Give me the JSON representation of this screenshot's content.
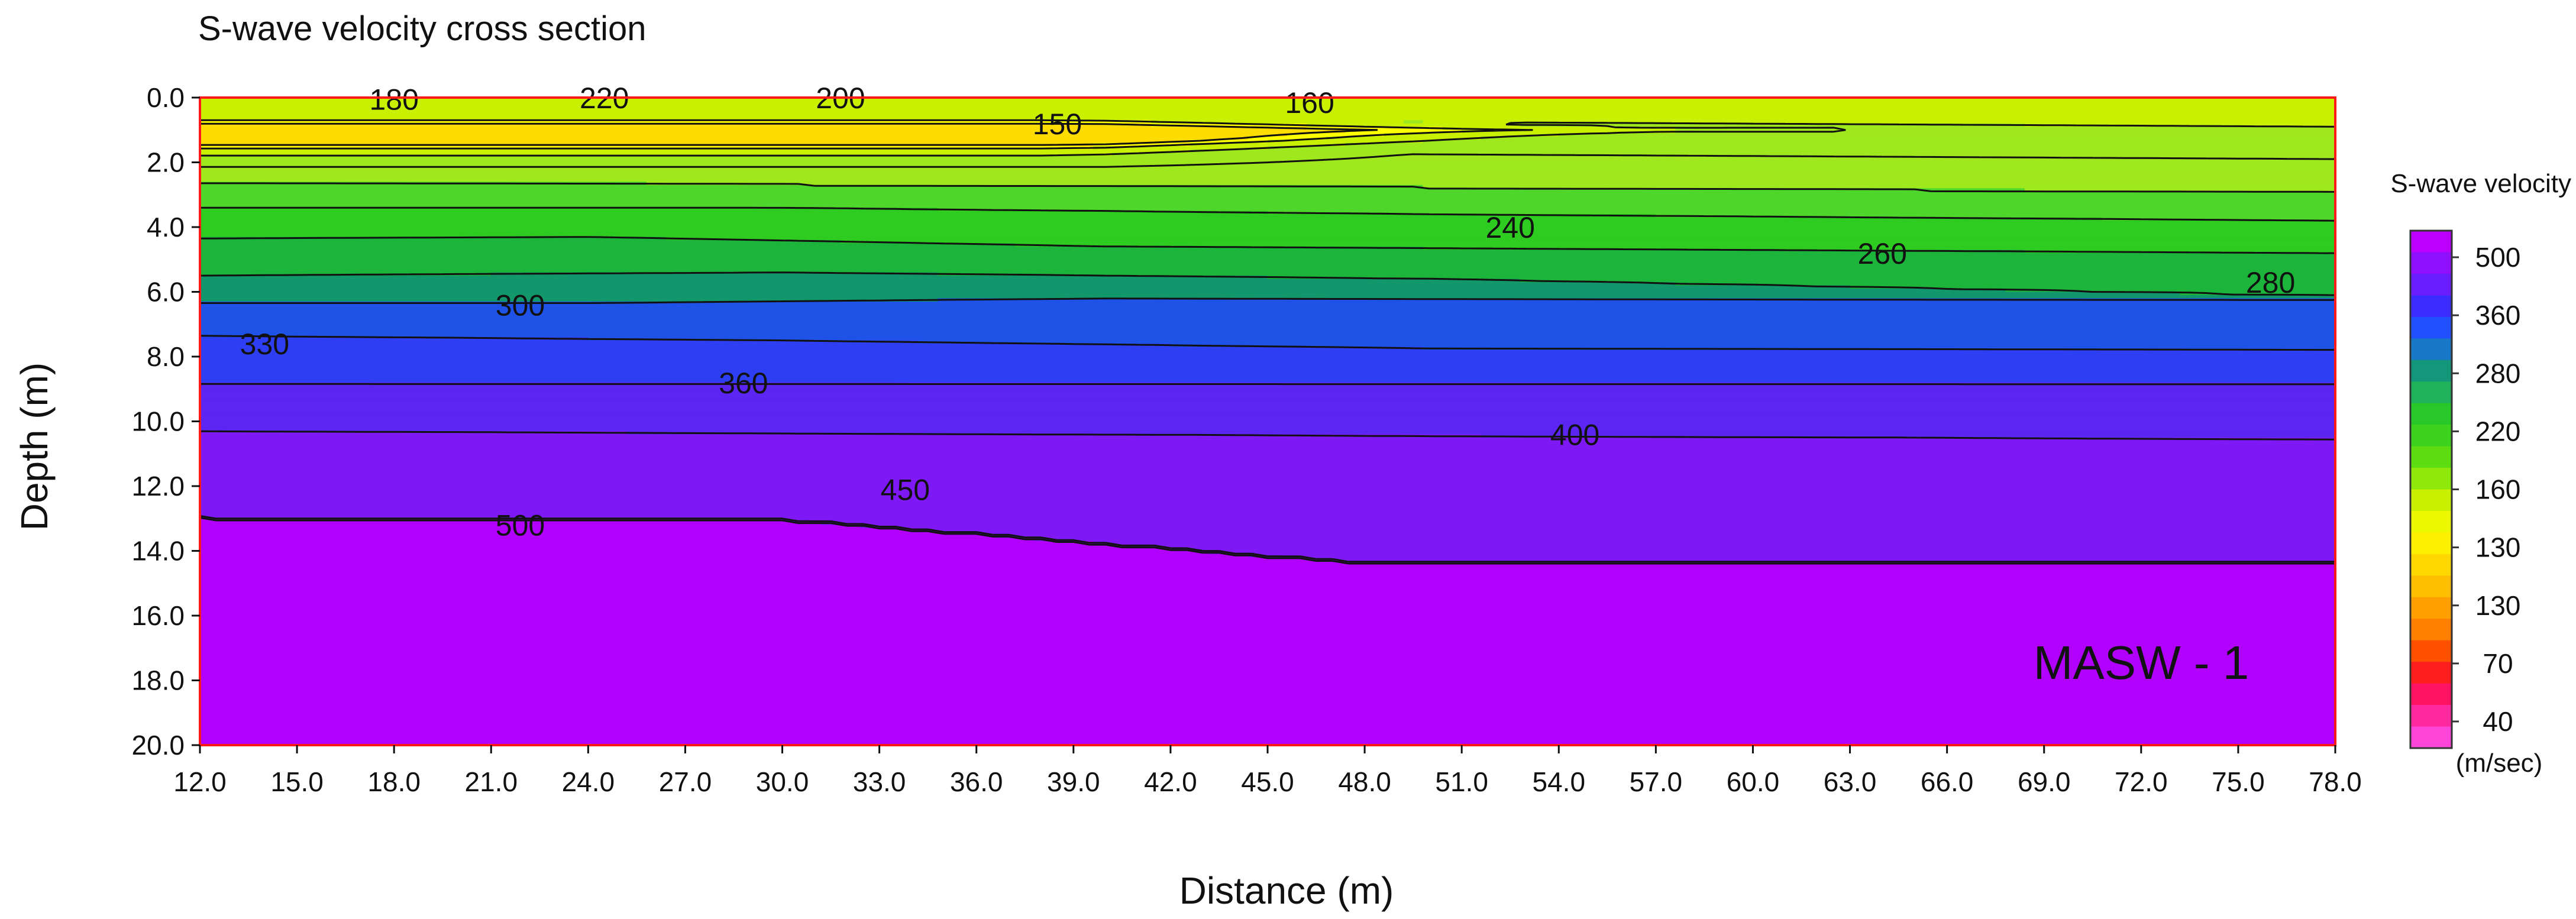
{
  "chart_data": {
    "type": "heatmap",
    "title": "S-wave velocity cross section",
    "xlabel": "Distance (m)",
    "ylabel": "Depth (m)",
    "x_ticks": [
      "12.0",
      "15.0",
      "18.0",
      "21.0",
      "24.0",
      "27.0",
      "30.0",
      "33.0",
      "36.0",
      "39.0",
      "42.0",
      "45.0",
      "48.0",
      "51.0",
      "54.0",
      "57.0",
      "60.0",
      "63.0",
      "66.0",
      "69.0",
      "72.0",
      "75.0",
      "78.0"
    ],
    "y_ticks": [
      "0.0",
      "2.0",
      "4.0",
      "6.0",
      "8.0",
      "10.0",
      "12.0",
      "14.0",
      "16.0",
      "18.0",
      "20.0"
    ],
    "xlim": [
      12,
      78
    ],
    "ylim": [
      0,
      20
    ],
    "annotation": "MASW - 1",
    "colorbar": {
      "title": "S-wave velocity",
      "unit": "(m/sec)",
      "labels": [
        "500",
        "360",
        "280",
        "220",
        "160",
        "130",
        "130",
        "70",
        "40"
      ],
      "colors": [
        "#bb00ff",
        "#8f10ff",
        "#6a1dff",
        "#3d2cff",
        "#2050ff",
        "#1a78c8",
        "#14967a",
        "#1fb25a",
        "#28c82a",
        "#3cd21e",
        "#5ddc12",
        "#8ee80a",
        "#c8f000",
        "#ecf800",
        "#fff000",
        "#ffd800",
        "#ffbe00",
        "#ffa000",
        "#ff7f00",
        "#ff5000",
        "#ff1e1e",
        "#ff1464",
        "#ff2aa0",
        "#ff44d8"
      ]
    },
    "bands": [
      {
        "v_min": 0,
        "v_max": 150,
        "color": "#ffdc00"
      },
      {
        "v_min": 150,
        "v_max": 160,
        "color": "#ffff00"
      },
      {
        "v_min": 160,
        "v_max": 180,
        "color": "#c8f000"
      },
      {
        "v_min": 180,
        "v_max": 220,
        "color": "#9fe81e"
      },
      {
        "v_min": 220,
        "v_max": 240,
        "color": "#4ed62a"
      },
      {
        "v_min": 240,
        "v_max": 260,
        "color": "#2ecb20"
      },
      {
        "v_min": 260,
        "v_max": 280,
        "color": "#1cb43a"
      },
      {
        "v_min": 280,
        "v_max": 300,
        "color": "#12966b"
      },
      {
        "v_min": 300,
        "v_max": 330,
        "color": "#1f52e6"
      },
      {
        "v_min": 330,
        "v_max": 360,
        "color": "#2e3ef2"
      },
      {
        "v_min": 360,
        "v_max": 400,
        "color": "#5b25f2"
      },
      {
        "v_min": 400,
        "v_max": 450,
        "color": "#7e18f4"
      },
      {
        "v_min": 450,
        "v_max": 500,
        "color": "#9e12f8"
      },
      {
        "v_min": 500,
        "v_max": 600,
        "color": "#b200ff"
      }
    ],
    "contour_labels": [
      {
        "text": "180",
        "x": 18.0,
        "y": 0.05
      },
      {
        "text": "220",
        "x": 24.5,
        "y": 0.0
      },
      {
        "text": "200",
        "x": 31.8,
        "y": 0.0
      },
      {
        "text": "150",
        "x": 38.5,
        "y": 0.8
      },
      {
        "text": "160",
        "x": 46.3,
        "y": 0.15
      },
      {
        "text": "240",
        "x": 52.5,
        "y": 4.0
      },
      {
        "text": "260",
        "x": 64.0,
        "y": 4.8
      },
      {
        "text": "280",
        "x": 76.0,
        "y": 5.7
      },
      {
        "text": "300",
        "x": 21.9,
        "y": 6.4
      },
      {
        "text": "330",
        "x": 14.0,
        "y": 7.6
      },
      {
        "text": "360",
        "x": 28.8,
        "y": 8.8
      },
      {
        "text": "400",
        "x": 54.5,
        "y": 10.4
      },
      {
        "text": "450",
        "x": 33.8,
        "y": 12.1
      },
      {
        "text": "500",
        "x": 21.9,
        "y": 13.2
      }
    ]
  }
}
